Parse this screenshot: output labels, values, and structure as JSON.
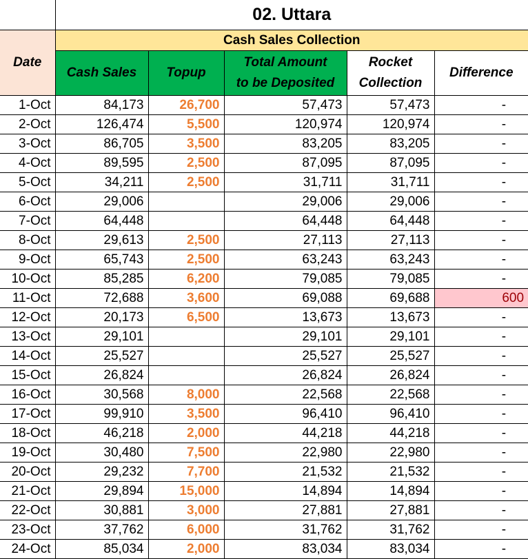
{
  "sheet": {
    "title": "02. Uttara",
    "group_header": "Cash Sales Collection",
    "columns": {
      "date": "Date",
      "cash_sales": "Cash Sales",
      "topup": "Topup",
      "total_line1": "Total Amount",
      "total_line2": "to be Deposited",
      "rocket_line1": "Rocket",
      "rocket_line2": "Collection",
      "difference": "Difference"
    },
    "colors": {
      "header_green": "#00b050",
      "group_yellow": "#ffe699",
      "date_peach": "#fce4d6",
      "topup_orange": "#ed7d31",
      "difference_highlight": "#ffc7ce"
    },
    "rows": [
      {
        "date": "1-Oct",
        "cash": "84,173",
        "topup": "26,700",
        "total": "57,473",
        "rocket": "57,473",
        "diff": "-"
      },
      {
        "date": "2-Oct",
        "cash": "126,474",
        "topup": "5,500",
        "total": "120,974",
        "rocket": "120,974",
        "diff": "-"
      },
      {
        "date": "3-Oct",
        "cash": "86,705",
        "topup": "3,500",
        "total": "83,205",
        "rocket": "83,205",
        "diff": "-"
      },
      {
        "date": "4-Oct",
        "cash": "89,595",
        "topup": "2,500",
        "total": "87,095",
        "rocket": "87,095",
        "diff": "-"
      },
      {
        "date": "5-Oct",
        "cash": "34,211",
        "topup": "2,500",
        "total": "31,711",
        "rocket": "31,711",
        "diff": "-"
      },
      {
        "date": "6-Oct",
        "cash": "29,006",
        "topup": "",
        "total": "29,006",
        "rocket": "29,006",
        "diff": "-"
      },
      {
        "date": "7-Oct",
        "cash": "64,448",
        "topup": "",
        "total": "64,448",
        "rocket": "64,448",
        "diff": "-"
      },
      {
        "date": "8-Oct",
        "cash": "29,613",
        "topup": "2,500",
        "total": "27,113",
        "rocket": "27,113",
        "diff": "-"
      },
      {
        "date": "9-Oct",
        "cash": "65,743",
        "topup": "2,500",
        "total": "63,243",
        "rocket": "63,243",
        "diff": "-"
      },
      {
        "date": "10-Oct",
        "cash": "85,285",
        "topup": "6,200",
        "total": "79,085",
        "rocket": "79,085",
        "diff": "-"
      },
      {
        "date": "11-Oct",
        "cash": "72,688",
        "topup": "3,600",
        "total": "69,088",
        "rocket": "69,688",
        "diff": "600",
        "highlight": true
      },
      {
        "date": "12-Oct",
        "cash": "20,173",
        "topup": "6,500",
        "total": "13,673",
        "rocket": "13,673",
        "diff": "-"
      },
      {
        "date": "13-Oct",
        "cash": "29,101",
        "topup": "",
        "total": "29,101",
        "rocket": "29,101",
        "diff": "-"
      },
      {
        "date": "14-Oct",
        "cash": "25,527",
        "topup": "",
        "total": "25,527",
        "rocket": "25,527",
        "diff": "-"
      },
      {
        "date": "15-Oct",
        "cash": "26,824",
        "topup": "",
        "total": "26,824",
        "rocket": "26,824",
        "diff": "-"
      },
      {
        "date": "16-Oct",
        "cash": "30,568",
        "topup": "8,000",
        "total": "22,568",
        "rocket": "22,568",
        "diff": "-"
      },
      {
        "date": "17-Oct",
        "cash": "99,910",
        "topup": "3,500",
        "total": "96,410",
        "rocket": "96,410",
        "diff": "-"
      },
      {
        "date": "18-Oct",
        "cash": "46,218",
        "topup": "2,000",
        "total": "44,218",
        "rocket": "44,218",
        "diff": "-"
      },
      {
        "date": "19-Oct",
        "cash": "30,480",
        "topup": "7,500",
        "total": "22,980",
        "rocket": "22,980",
        "diff": "-"
      },
      {
        "date": "20-Oct",
        "cash": "29,232",
        "topup": "7,700",
        "total": "21,532",
        "rocket": "21,532",
        "diff": "-"
      },
      {
        "date": "21-Oct",
        "cash": "29,894",
        "topup": "15,000",
        "total": "14,894",
        "rocket": "14,894",
        "diff": "-"
      },
      {
        "date": "22-Oct",
        "cash": "30,881",
        "topup": "3,000",
        "total": "27,881",
        "rocket": "27,881",
        "diff": "-"
      },
      {
        "date": "23-Oct",
        "cash": "37,762",
        "topup": "6,000",
        "total": "31,762",
        "rocket": "31,762",
        "diff": "-"
      },
      {
        "date": "24-Oct",
        "cash": "85,034",
        "topup": "2,000",
        "total": "83,034",
        "rocket": "83,034",
        "diff": "-"
      }
    ]
  }
}
